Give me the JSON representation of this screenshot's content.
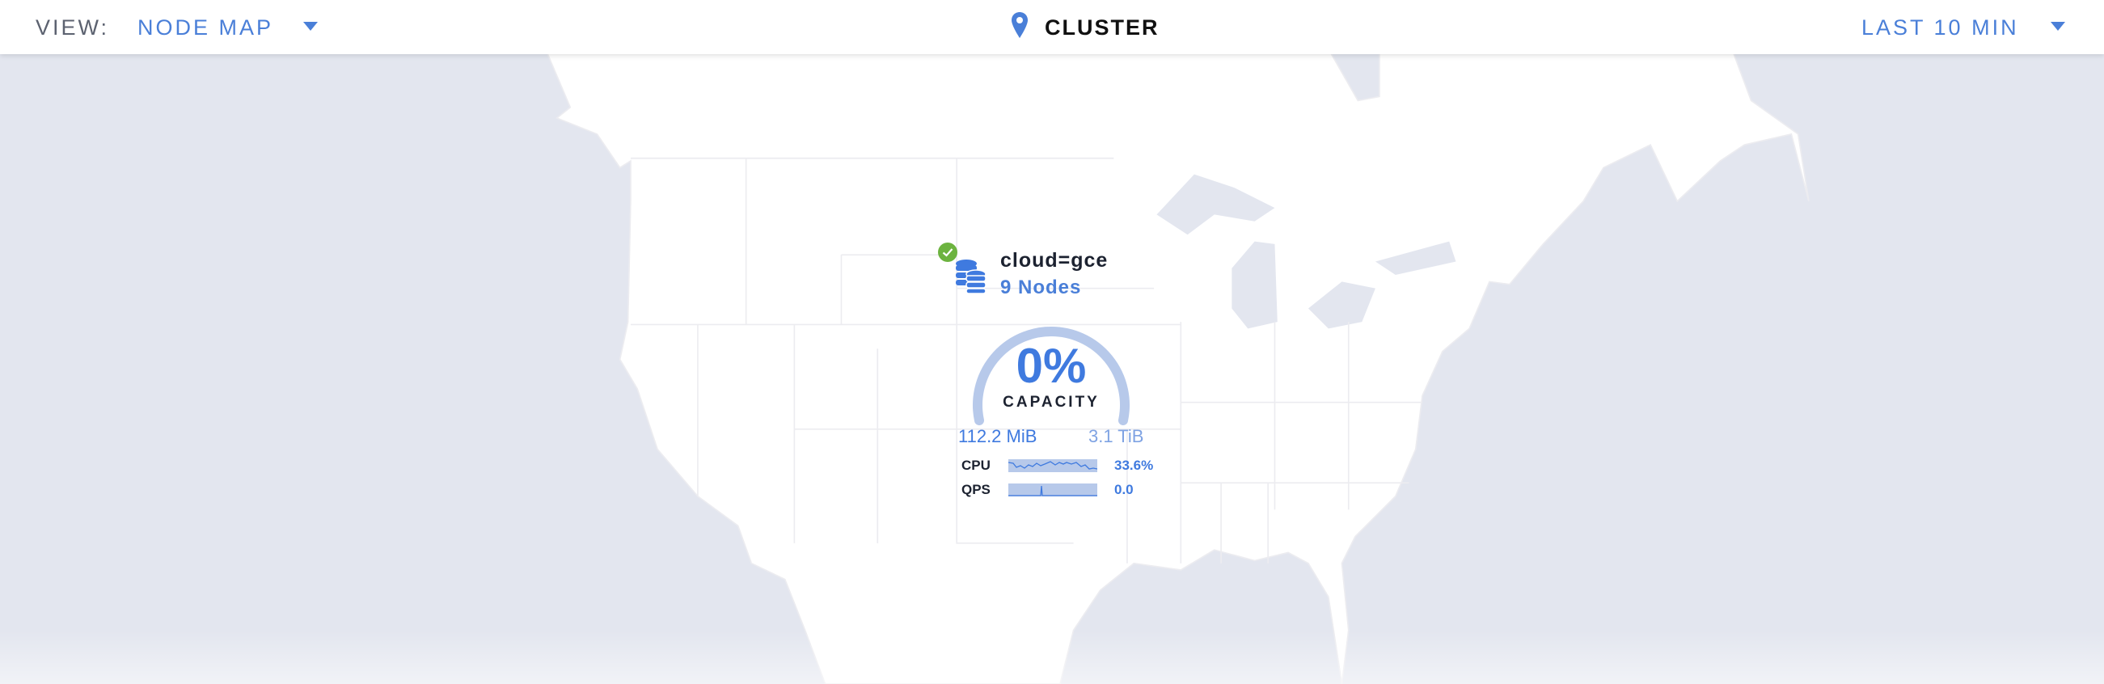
{
  "header": {
    "view_label": "VIEW:",
    "view_value": "NODE MAP",
    "location_icon": "map-pin-icon",
    "title": "CLUSTER",
    "time_range": "LAST 10 MIN"
  },
  "colors": {
    "accent": "#4a7fd8",
    "ocean": "#e3e6ef",
    "land": "#ffffff",
    "healthy": "#6cb33f",
    "gauge_track": "#b7c9ea"
  },
  "locality": {
    "status_icon": "check-circle-icon",
    "status": "healthy",
    "icon": "database-stack-icon",
    "name": "cloud=gce",
    "node_count": "9 Nodes",
    "capacity_percent": "0%",
    "capacity_fraction": 0,
    "capacity_label": "CAPACITY",
    "used": "112.2 MiB",
    "total": "3.1 TiB",
    "metrics": [
      {
        "label": "CPU",
        "value": "33.6%"
      },
      {
        "label": "QPS",
        "value": "0.0"
      }
    ]
  }
}
